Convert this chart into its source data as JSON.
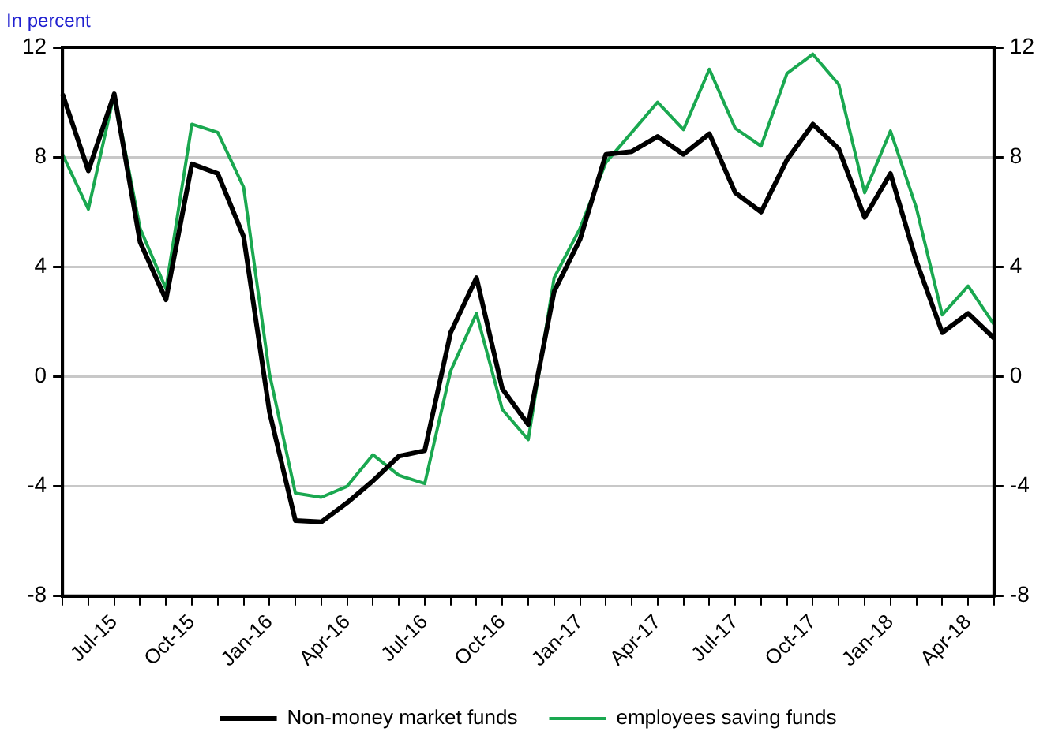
{
  "chart_data": {
    "type": "line",
    "ylabel": "In percent",
    "categories": [
      null,
      null,
      "Jul-15",
      null,
      null,
      "Oct-15",
      null,
      null,
      "Jan-16",
      null,
      null,
      "Apr-16",
      null,
      null,
      "Jul-16",
      null,
      null,
      "Oct-16",
      null,
      null,
      "Jan-17",
      null,
      null,
      "Apr-17",
      null,
      null,
      "Jul-17",
      null,
      null,
      "Oct-17",
      null,
      null,
      "Jan-18",
      null,
      null,
      "Apr-18",
      null
    ],
    "series": [
      {
        "name": "Non-money market funds",
        "color": "#000000",
        "values": [
          10.3,
          7.5,
          10.3,
          4.9,
          2.8,
          7.75,
          7.4,
          5.1,
          -1.3,
          -5.25,
          -5.3,
          -4.6,
          -3.8,
          -2.9,
          -2.7,
          1.6,
          3.6,
          -0.45,
          -1.75,
          3.1,
          5.0,
          8.1,
          8.2,
          8.75,
          8.1,
          8.85,
          6.7,
          6.0,
          7.9,
          9.2,
          8.3,
          5.8,
          7.4,
          4.2,
          1.6,
          2.3,
          1.4
        ]
      },
      {
        "name": "employees saving funds",
        "color": "#1aa850",
        "values": [
          8.1,
          6.1,
          10.3,
          5.4,
          3.2,
          9.2,
          8.9,
          6.9,
          0.1,
          -4.25,
          -4.4,
          -4.0,
          -2.85,
          -3.6,
          -3.9,
          0.2,
          2.3,
          -1.2,
          -2.3,
          3.6,
          5.4,
          7.8,
          8.9,
          10.0,
          9.0,
          11.2,
          9.05,
          8.4,
          11.05,
          11.75,
          10.65,
          6.7,
          8.95,
          6.15,
          2.25,
          3.3,
          1.9
        ]
      }
    ],
    "ylim": [
      -8,
      12
    ],
    "yticks": [
      -8,
      -4,
      0,
      4,
      8,
      12
    ],
    "y2lim": [
      -8,
      12
    ],
    "y2ticks": [
      -8,
      -4,
      0,
      4,
      8,
      12
    ],
    "grid": "y",
    "legend": "bottom",
    "marker": "none",
    "line_style": "solid"
  }
}
